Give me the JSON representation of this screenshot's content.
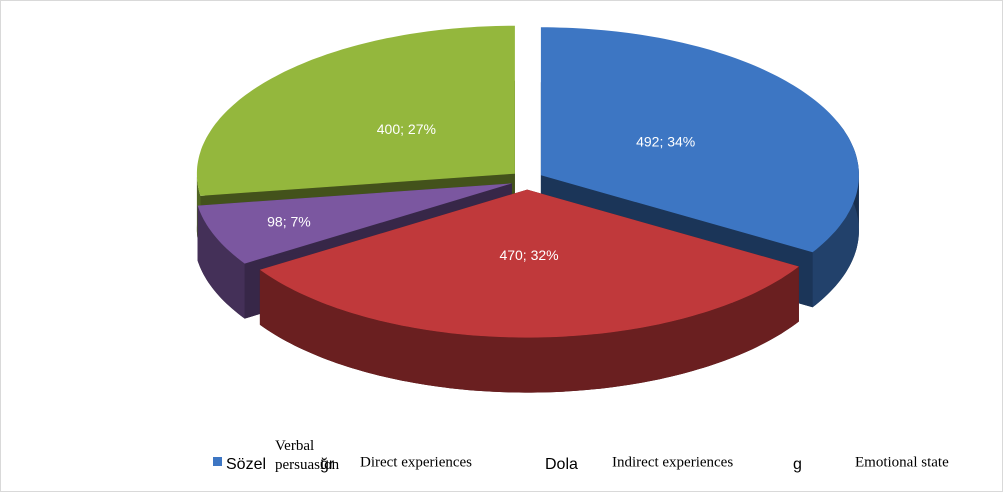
{
  "chart_data": {
    "type": "pie3d",
    "categories": [
      "Verbal persuasion",
      "Direct experiences",
      "Indirect experiences",
      "Emotional state"
    ],
    "values": [
      492,
      470,
      98,
      400
    ],
    "value_labels": [
      "492; 34%",
      "470; 32%",
      "98; 7%",
      "400; 27%"
    ],
    "colors": [
      "#3d76c3",
      "#c0393b",
      "#7b57a0",
      "#94b73d"
    ],
    "legend_fragments": [
      "Sözel",
      "ğr",
      "Dola",
      "g"
    ]
  }
}
